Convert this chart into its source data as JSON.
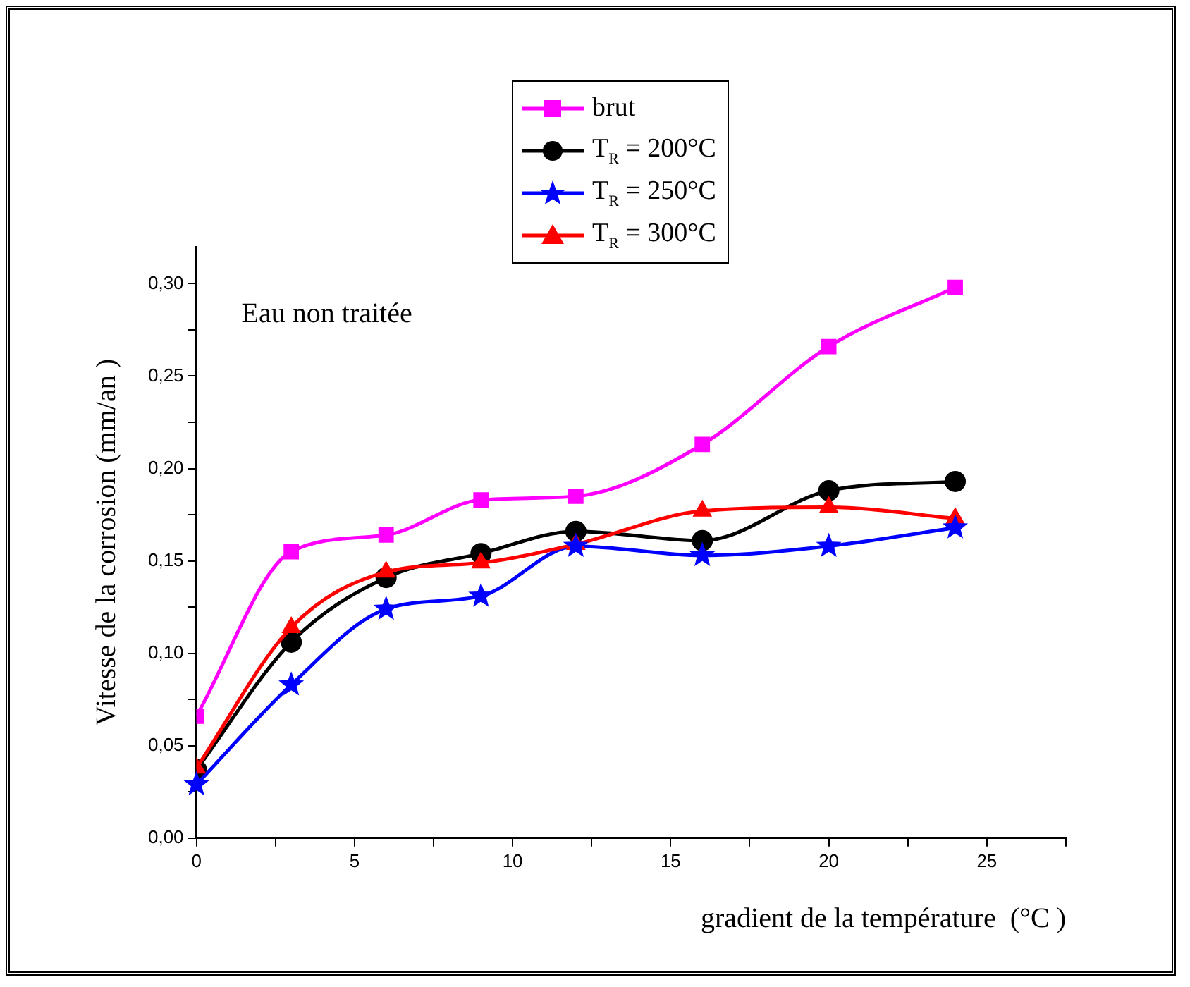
{
  "chart_data": {
    "type": "line",
    "xlabel": "gradient de la température  (°C )",
    "ylabel": "Vitesse de la corrosion (mm/an )",
    "annotations": [
      "Eau non traitée"
    ],
    "x": [
      0,
      3,
      6,
      9,
      12,
      16,
      20,
      24
    ],
    "xlim": [
      0,
      27.5
    ],
    "xticks": [
      0,
      {
        "value": 2.5,
        "label": null
      },
      5,
      {
        "value": 7.5,
        "label": null
      },
      10,
      {
        "value": 12.5,
        "label": null
      },
      15,
      {
        "value": 17.5,
        "label": null
      },
      20,
      {
        "value": 22.5,
        "label": null
      },
      25,
      {
        "value": 27.5,
        "label": null
      }
    ],
    "ylim": [
      0,
      0.32
    ],
    "yticks": [
      {
        "value": 0,
        "label": "0,00"
      },
      {
        "value": 0.025,
        "label": null
      },
      {
        "value": 0.05,
        "label": "0,05"
      },
      {
        "value": 0.075,
        "label": null
      },
      {
        "value": 0.1,
        "label": "0,10"
      },
      {
        "value": 0.125,
        "label": null
      },
      {
        "value": 0.15,
        "label": "0,15"
      },
      {
        "value": 0.175,
        "label": null
      },
      {
        "value": 0.2,
        "label": "0,20"
      },
      {
        "value": 0.225,
        "label": null
      },
      {
        "value": 0.25,
        "label": "0,25"
      },
      {
        "value": 0.275,
        "label": null
      },
      {
        "value": 0.3,
        "label": "0,30"
      }
    ],
    "grid": false,
    "legend": "top",
    "line_style": "solid",
    "series": [
      {
        "name": "brut",
        "color": "#ff00ff",
        "marker": "square",
        "values": [
          0.066,
          0.155,
          0.164,
          0.183,
          0.185,
          0.213,
          0.266,
          0.298
        ]
      },
      {
        "name": "T$_{R}$ = 200°C",
        "color": "#000000",
        "marker": "circle",
        "values": [
          0.037,
          0.106,
          0.141,
          0.154,
          0.166,
          0.161,
          0.188,
          0.193
        ]
      },
      {
        "name": "T$_{R}$ = 250°C",
        "color": "#0000ff",
        "marker": "star",
        "values": [
          0.029,
          0.083,
          0.124,
          0.131,
          0.158,
          0.153,
          0.158,
          0.168
        ]
      },
      {
        "name": "T$_{R}$ = 300°C",
        "color": "#ff0000",
        "marker": "triangle",
        "values": [
          0.038,
          0.114,
          0.144,
          0.149,
          0.159,
          0.177,
          0.179,
          0.173
        ]
      }
    ]
  }
}
